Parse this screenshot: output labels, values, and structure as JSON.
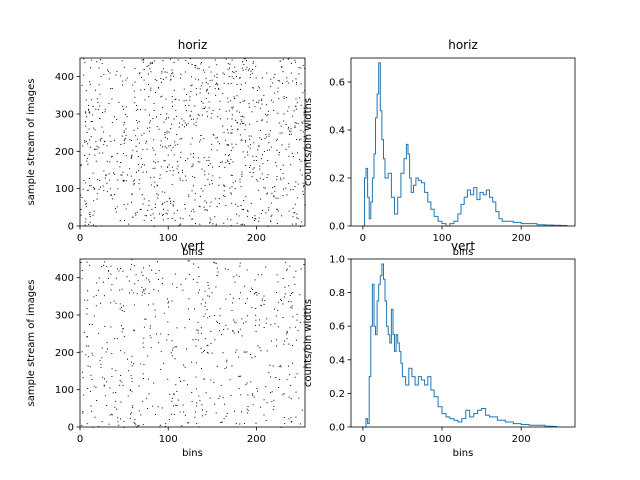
{
  "chart_data": [
    {
      "type": "scatter",
      "title": "horiz",
      "xlabel": "bins",
      "ylabel": "sample stream of images",
      "xlim": [
        0,
        255
      ],
      "ylim": [
        0,
        450
      ],
      "xticks": [
        "0",
        "100",
        "200"
      ],
      "yticks": [
        "0",
        "100",
        "200",
        "300",
        "400"
      ],
      "description": "sparse raster of black single-pixel dots, roughly uniform density",
      "marker_color": "#000000",
      "n_points": 1100,
      "seed": 11
    },
    {
      "type": "line",
      "style": "step",
      "title": "horiz",
      "xlabel": "bins",
      "ylabel": "counts/bin widths",
      "xlim": [
        -15,
        268
      ],
      "ylim": [
        0,
        0.7
      ],
      "xticks": [
        "0",
        "100",
        "200"
      ],
      "yticks": [
        "0.0",
        "0.2",
        "0.4",
        "0.6"
      ],
      "color": "#1f77b4",
      "x": [
        0,
        2,
        4,
        6,
        8,
        10,
        12,
        14,
        16,
        18,
        20,
        22,
        24,
        26,
        28,
        32,
        36,
        40,
        44,
        48,
        52,
        55,
        57,
        59,
        61,
        64,
        67,
        70,
        74,
        78,
        82,
        86,
        90,
        95,
        100,
        105,
        110,
        115,
        120,
        124,
        128,
        132,
        136,
        140,
        144,
        148,
        152,
        156,
        160,
        164,
        168,
        172,
        176,
        180,
        190,
        200,
        210,
        220,
        230,
        240,
        250,
        258
      ],
      "y": [
        0.0,
        0.2,
        0.24,
        0.12,
        0.03,
        0.1,
        0.2,
        0.3,
        0.45,
        0.55,
        0.68,
        0.48,
        0.36,
        0.28,
        0.2,
        0.22,
        0.12,
        0.05,
        0.12,
        0.22,
        0.28,
        0.34,
        0.3,
        0.2,
        0.14,
        0.17,
        0.2,
        0.19,
        0.18,
        0.14,
        0.1,
        0.07,
        0.04,
        0.02,
        0.01,
        0.0,
        0.01,
        0.02,
        0.05,
        0.09,
        0.12,
        0.15,
        0.13,
        0.16,
        0.11,
        0.14,
        0.13,
        0.15,
        0.12,
        0.1,
        0.06,
        0.03,
        0.02,
        0.02,
        0.015,
        0.01,
        0.01,
        0.005,
        0.004,
        0.003,
        0.002,
        0.0
      ]
    },
    {
      "type": "scatter",
      "title": "vert",
      "xlabel": "bins",
      "ylabel": "sample stream of images",
      "xlim": [
        0,
        255
      ],
      "ylim": [
        0,
        450
      ],
      "xticks": [
        "0",
        "100",
        "200"
      ],
      "yticks": [
        "0",
        "100",
        "200",
        "300",
        "400"
      ],
      "description": "sparse raster of black single-pixel dots, roughly uniform density",
      "marker_color": "#000000",
      "n_points": 620,
      "seed": 29
    },
    {
      "type": "line",
      "style": "step",
      "title": "vert",
      "xlabel": "bins",
      "ylabel": "counts/bin widths",
      "xlim": [
        -15,
        268
      ],
      "ylim": [
        0,
        1.0
      ],
      "xticks": [
        "0",
        "100",
        "200"
      ],
      "yticks": [
        "0.0",
        "0.2",
        "0.4",
        "0.6",
        "0.8",
        "1.0"
      ],
      "color": "#1f77b4",
      "x": [
        0,
        4,
        6,
        8,
        10,
        12,
        14,
        16,
        18,
        20,
        22,
        24,
        26,
        28,
        30,
        32,
        34,
        36,
        38,
        40,
        42,
        44,
        46,
        48,
        50,
        54,
        58,
        62,
        66,
        70,
        74,
        78,
        82,
        86,
        90,
        95,
        100,
        105,
        110,
        115,
        120,
        125,
        130,
        135,
        140,
        145,
        150,
        155,
        160,
        170,
        180,
        190,
        200,
        210,
        220,
        230,
        240,
        245
      ],
      "y": [
        0.0,
        0.05,
        0.02,
        0.3,
        0.6,
        0.85,
        0.6,
        0.55,
        0.75,
        0.85,
        0.9,
        0.97,
        0.88,
        0.75,
        0.6,
        0.55,
        0.5,
        0.7,
        0.55,
        0.45,
        0.55,
        0.5,
        0.45,
        0.38,
        0.3,
        0.25,
        0.35,
        0.3,
        0.25,
        0.3,
        0.28,
        0.25,
        0.3,
        0.22,
        0.18,
        0.12,
        0.08,
        0.06,
        0.05,
        0.04,
        0.03,
        0.05,
        0.1,
        0.06,
        0.08,
        0.1,
        0.11,
        0.07,
        0.06,
        0.04,
        0.03,
        0.02,
        0.015,
        0.01,
        0.01,
        0.005,
        0.003,
        0.0
      ]
    }
  ]
}
